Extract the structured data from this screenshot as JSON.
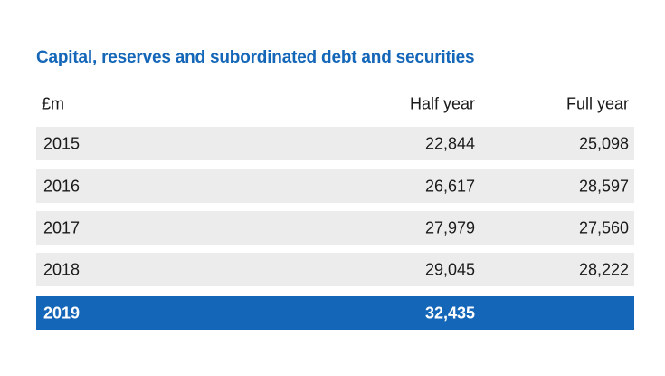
{
  "title": "Capital, reserves and subordinated debt and securities",
  "columns": [
    "£m",
    "Half year",
    "Full year"
  ],
  "rows": [
    {
      "year": "2015",
      "half_year": "22,844",
      "full_year": "25,098"
    },
    {
      "year": "2016",
      "half_year": "26,617",
      "full_year": "28,597"
    },
    {
      "year": "2017",
      "half_year": "27,979",
      "full_year": "27,560"
    },
    {
      "year": "2018",
      "half_year": "29,045",
      "full_year": "28,222"
    },
    {
      "year": "2019",
      "half_year": "32,435",
      "full_year": ""
    }
  ],
  "colors": {
    "accent": "#1466b8",
    "row_fill": "#ececec",
    "highlight_text": "#ffffff"
  }
}
